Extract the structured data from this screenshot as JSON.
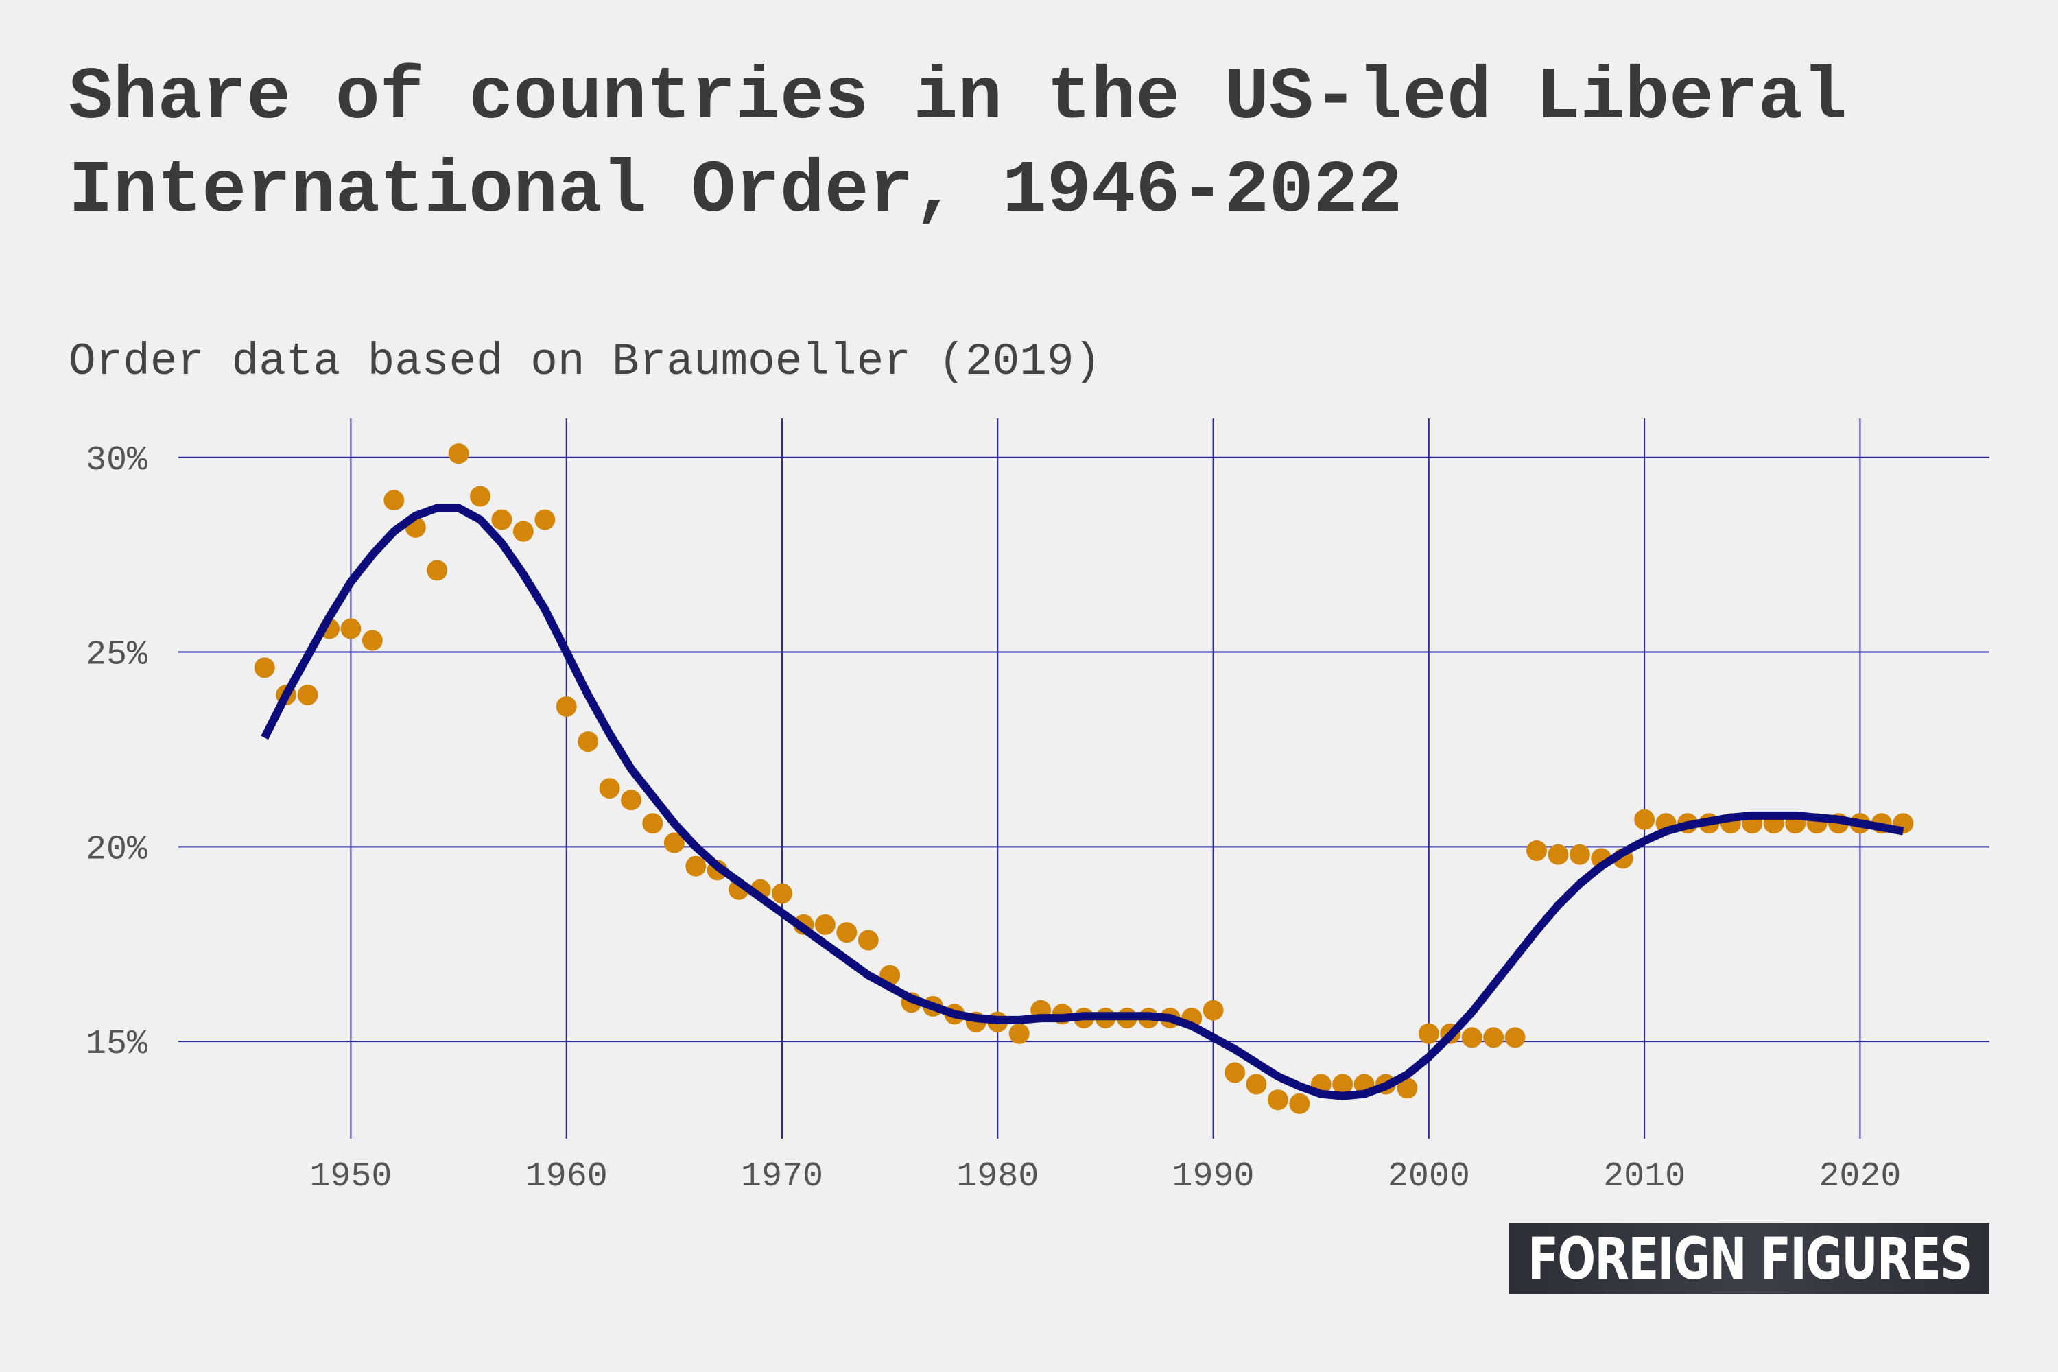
{
  "header": {
    "title": "Share of countries in the US-led Liberal International Order, 1946-2022",
    "subtitle": "Order data based on Braumoeller (2019)"
  },
  "branding": {
    "logo_text": "FOREIGN FIGURES"
  },
  "colors": {
    "background": "#f0f0f0",
    "points": "#d4860b",
    "trend_line": "#0c0c7a",
    "grid": "#2b2b9e"
  },
  "chart_data": {
    "type": "scatter",
    "title": "Share of countries in the US-led Liberal International Order, 1946-2022",
    "subtitle": "Order data based on Braumoeller (2019)",
    "xlabel": "",
    "ylabel": "",
    "xlim": [
      1942,
      2026
    ],
    "ylim": [
      12.5,
      31
    ],
    "x_ticks": [
      1950,
      1960,
      1970,
      1980,
      1990,
      2000,
      2010,
      2020
    ],
    "x_tick_labels": [
      "1950",
      "1960",
      "1970",
      "1980",
      "1990",
      "2000",
      "2010",
      "2020"
    ],
    "y_ticks": [
      15,
      20,
      25,
      30
    ],
    "y_tick_labels": [
      "15%",
      "20%",
      "25%",
      "30%"
    ],
    "grid": true,
    "legend": "none",
    "series": [
      {
        "type": "scatter",
        "x": [
          1946,
          1947,
          1948,
          1949,
          1950,
          1951,
          1952,
          1953,
          1954,
          1955,
          1956,
          1957,
          1958,
          1959,
          1960,
          1961,
          1962,
          1963,
          1964,
          1965,
          1966,
          1967,
          1968,
          1969,
          1970,
          1971,
          1972,
          1973,
          1974,
          1975,
          1976,
          1977,
          1978,
          1979,
          1980,
          1981,
          1982,
          1983,
          1984,
          1985,
          1986,
          1987,
          1988,
          1989,
          1990,
          1991,
          1992,
          1993,
          1994,
          1995,
          1996,
          1997,
          1998,
          1999,
          2000,
          2001,
          2002,
          2003,
          2004,
          2005,
          2006,
          2007,
          2008,
          2009,
          2010,
          2011,
          2012,
          2013,
          2014,
          2015,
          2016,
          2017,
          2018,
          2019,
          2020,
          2021,
          2022
        ],
        "y": [
          24.6,
          23.9,
          23.9,
          25.6,
          25.6,
          25.3,
          28.9,
          28.2,
          27.1,
          30.1,
          29.0,
          28.4,
          28.1,
          28.4,
          23.6,
          22.7,
          21.5,
          21.2,
          20.6,
          20.1,
          19.5,
          19.4,
          18.9,
          18.9,
          18.8,
          18.0,
          18.0,
          17.8,
          17.6,
          16.7,
          16.0,
          15.9,
          15.7,
          15.5,
          15.5,
          15.2,
          15.8,
          15.7,
          15.6,
          15.6,
          15.6,
          15.6,
          15.6,
          15.6,
          15.8,
          14.2,
          13.9,
          13.5,
          13.4,
          13.9,
          13.9,
          13.9,
          13.9,
          13.8,
          15.2,
          15.2,
          15.1,
          15.1,
          15.1,
          19.9,
          19.8,
          19.8,
          19.7,
          19.7,
          20.7,
          20.6,
          20.6,
          20.6,
          20.6,
          20.6,
          20.6,
          20.6,
          20.6,
          20.6,
          20.6,
          20.6,
          20.6
        ]
      },
      {
        "type": "line",
        "x": [
          1946,
          1947,
          1948,
          1949,
          1950,
          1951,
          1952,
          1953,
          1954,
          1955,
          1956,
          1957,
          1958,
          1959,
          1960,
          1961,
          1962,
          1963,
          1964,
          1965,
          1966,
          1967,
          1968,
          1969,
          1970,
          1971,
          1972,
          1973,
          1974,
          1975,
          1976,
          1977,
          1978,
          1979,
          1980,
          1981,
          1982,
          1983,
          1984,
          1985,
          1986,
          1987,
          1988,
          1989,
          1990,
          1991,
          1992,
          1993,
          1994,
          1995,
          1996,
          1997,
          1998,
          1999,
          2000,
          2001,
          2002,
          2003,
          2004,
          2005,
          2006,
          2007,
          2008,
          2009,
          2010,
          2011,
          2012,
          2013,
          2014,
          2015,
          2016,
          2017,
          2018,
          2019,
          2020,
          2021,
          2022
        ],
        "y": [
          22.8,
          23.9,
          24.9,
          25.9,
          26.8,
          27.5,
          28.1,
          28.5,
          28.7,
          28.7,
          28.4,
          27.8,
          27.0,
          26.1,
          25.0,
          23.9,
          22.9,
          22.0,
          21.3,
          20.6,
          20.0,
          19.5,
          19.1,
          18.7,
          18.3,
          17.9,
          17.5,
          17.1,
          16.7,
          16.4,
          16.1,
          15.9,
          15.7,
          15.6,
          15.55,
          15.55,
          15.6,
          15.6,
          15.65,
          15.65,
          15.65,
          15.65,
          15.6,
          15.4,
          15.1,
          14.8,
          14.45,
          14.1,
          13.85,
          13.65,
          13.6,
          13.65,
          13.85,
          14.15,
          14.6,
          15.15,
          15.75,
          16.45,
          17.15,
          17.85,
          18.5,
          19.05,
          19.5,
          19.85,
          20.15,
          20.4,
          20.55,
          20.65,
          20.75,
          20.8,
          20.8,
          20.8,
          20.75,
          20.7,
          20.6,
          20.5,
          20.4
        ]
      }
    ]
  }
}
